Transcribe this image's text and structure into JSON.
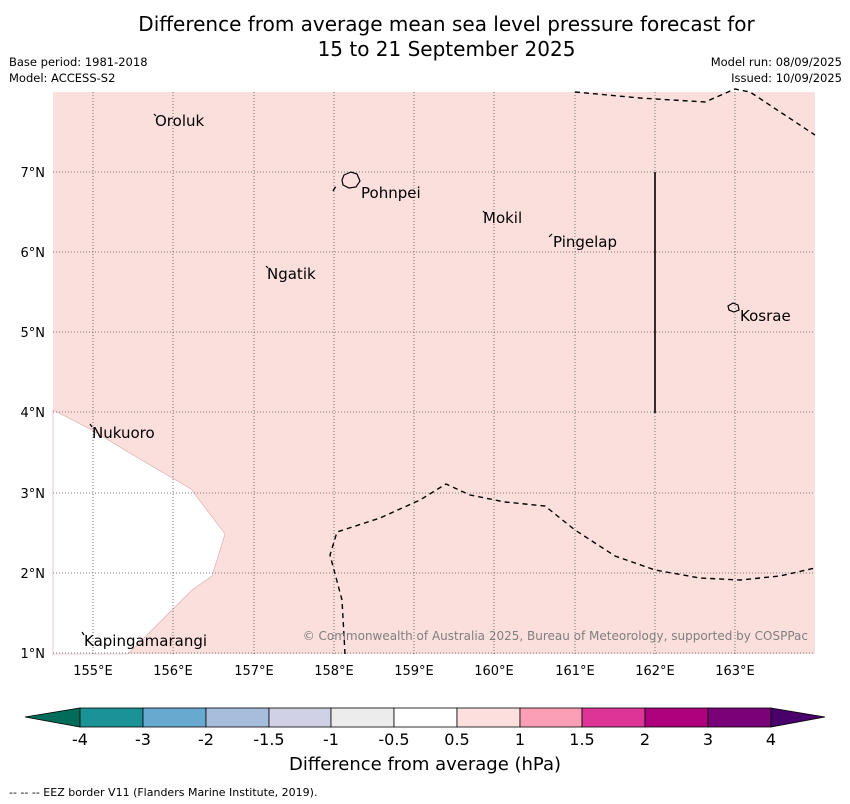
{
  "title_line1": "Difference from average mean sea level pressure forecast for",
  "title_line2": "15 to 21 September 2025",
  "meta": {
    "base_period": "Base period: 1981-2018",
    "model": "Model: ACCESS-S2",
    "model_run": "Model run: 08/09/2025",
    "issued": "Issued: 10/09/2025"
  },
  "map": {
    "lat_labels": [
      "7°N",
      "6°N",
      "5°N",
      "4°N",
      "3°N",
      "2°N",
      "1°N"
    ],
    "lon_labels": [
      "155°E",
      "156°E",
      "157°E",
      "158°E",
      "159°E",
      "160°E",
      "161°E",
      "162°E",
      "163°E"
    ],
    "places": [
      "Oroluk",
      "Pohnpei",
      "Mokil",
      "Pingelap",
      "Ngatik",
      "Kosrae",
      "Nukuoro",
      "Kapingamarangi"
    ],
    "copyright": "© Commonwealth of Australia 2025, Bureau of Meteorology, supported by COSPPac",
    "fill_color": "#fbdfdc"
  },
  "colorbar": {
    "ticks": [
      "-4",
      "-3",
      "-2",
      "-1.5",
      "-1",
      "-0.5",
      "0.5",
      "1",
      "1.5",
      "2",
      "3",
      "4"
    ],
    "colors": [
      "#016c59",
      "#1b9296",
      "#67a9cf",
      "#a6bddb",
      "#d0d1e6",
      "#ececec",
      "#ffffff",
      "#fde0dd",
      "#fa9fb5",
      "#dd3497",
      "#ae017e",
      "#7a0177",
      "#49006a"
    ],
    "title": "Difference from average (hPa)"
  },
  "footnote": "--  --  -- EEZ border V11 (Flanders Marine Institute, 2019)."
}
